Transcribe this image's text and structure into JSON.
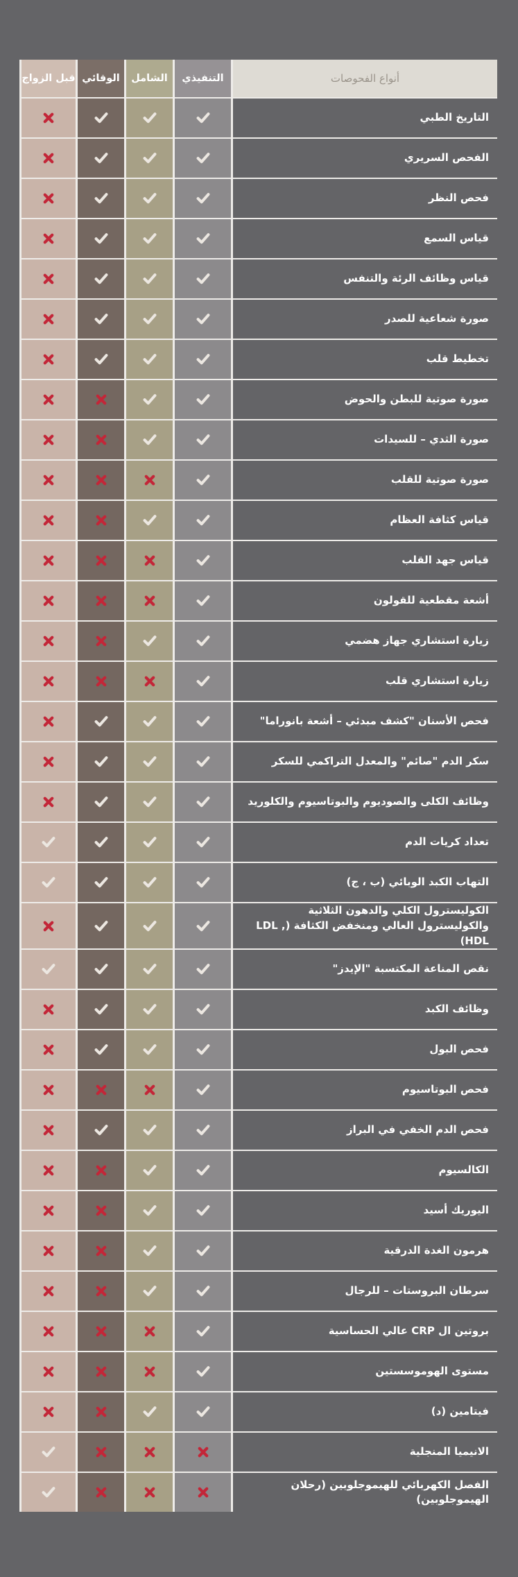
{
  "page": {
    "background_color": "#646467",
    "separator_color": "#eeece9"
  },
  "colors": {
    "check_mark": "#ece7e1",
    "cross_mark": "#c32638",
    "name_header_bg": "#dedbd4",
    "name_header_text": "#9a948b",
    "row_label_text": "#ffffff"
  },
  "table": {
    "name_header": "أنواع الفحوصات",
    "columns": [
      {
        "key": "executive",
        "label": "التنفيذي",
        "header_bg": "#969295",
        "body_bg": "#8c8a8c"
      },
      {
        "key": "comprehensive",
        "label": "الشامل",
        "header_bg": "#aeaa8f",
        "body_bg": "#a7a086"
      },
      {
        "key": "preventive",
        "label": "الوقائي",
        "header_bg": "#7b6e67",
        "body_bg": "#746760"
      },
      {
        "key": "premarital",
        "label": "قبل الزواج",
        "header_bg": "#cfbdb2",
        "body_bg": "#c9b4a9"
      }
    ],
    "rows": [
      {
        "label": "التاريخ الطبي",
        "executive": "check",
        "comprehensive": "check",
        "preventive": "check",
        "premarital": "cross"
      },
      {
        "label": "الفحص السريري",
        "executive": "check",
        "comprehensive": "check",
        "preventive": "check",
        "premarital": "cross"
      },
      {
        "label": "فحص النظر",
        "executive": "check",
        "comprehensive": "check",
        "preventive": "check",
        "premarital": "cross"
      },
      {
        "label": "قياس السمع",
        "executive": "check",
        "comprehensive": "check",
        "preventive": "check",
        "premarital": "cross"
      },
      {
        "label": "قياس وظائف الرئة والتنفس",
        "executive": "check",
        "comprehensive": "check",
        "preventive": "check",
        "premarital": "cross"
      },
      {
        "label": "صورة شعاعية للصدر",
        "executive": "check",
        "comprehensive": "check",
        "preventive": "check",
        "premarital": "cross"
      },
      {
        "label": "تخطيط قلب",
        "executive": "check",
        "comprehensive": "check",
        "preventive": "check",
        "premarital": "cross"
      },
      {
        "label": "صورة صوتية للبطن والحوض",
        "executive": "check",
        "comprehensive": "check",
        "preventive": "cross",
        "premarital": "cross"
      },
      {
        "label": "صورة الثدي – للسيدات",
        "executive": "check",
        "comprehensive": "check",
        "preventive": "cross",
        "premarital": "cross"
      },
      {
        "label": "صورة صوتية للقلب",
        "executive": "check",
        "comprehensive": "cross",
        "preventive": "cross",
        "premarital": "cross"
      },
      {
        "label": "قياس كثافة العظام",
        "executive": "check",
        "comprehensive": "check",
        "preventive": "cross",
        "premarital": "cross"
      },
      {
        "label": "قياس جهد القلب",
        "executive": "check",
        "comprehensive": "cross",
        "preventive": "cross",
        "premarital": "cross"
      },
      {
        "label": "أشعة مقطعية للقولون",
        "executive": "check",
        "comprehensive": "cross",
        "preventive": "cross",
        "premarital": "cross"
      },
      {
        "label": "زيارة استشاري جهاز هضمي",
        "executive": "check",
        "comprehensive": "check",
        "preventive": "cross",
        "premarital": "cross"
      },
      {
        "label": "زيارة استشاري قلب",
        "executive": "check",
        "comprehensive": "cross",
        "preventive": "cross",
        "premarital": "cross"
      },
      {
        "label": "فحص الأسنان \"كشف مبدئي – أشعة بانوراما\"",
        "executive": "check",
        "comprehensive": "check",
        "preventive": "check",
        "premarital": "cross"
      },
      {
        "label": "سكر الدم \"صائم\" والمعدل التراكمي للسكر",
        "executive": "check",
        "comprehensive": "check",
        "preventive": "check",
        "premarital": "cross"
      },
      {
        "label": "وظائف الكلى والصوديوم والبوتاسيوم والكلوريد",
        "executive": "check",
        "comprehensive": "check",
        "preventive": "check",
        "premarital": "cross"
      },
      {
        "label": "تعداد كريات الدم",
        "executive": "check",
        "comprehensive": "check",
        "preventive": "check",
        "premarital": "check"
      },
      {
        "label": "التهاب الكبد الوبائي (ب ، ج)",
        "executive": "check",
        "comprehensive": "check",
        "preventive": "check",
        "premarital": "check"
      },
      {
        "label": "الكوليسترول الكلي والدهون الثلاثية والكوليسترول العالي ومنخفض الكثافة (LDL , HDL)",
        "executive": "check",
        "comprehensive": "check",
        "preventive": "check",
        "premarital": "cross"
      },
      {
        "label": "نقص المناعة المكتسبة \"الإيدز\"",
        "executive": "check",
        "comprehensive": "check",
        "preventive": "check",
        "premarital": "check"
      },
      {
        "label": "وظائف الكبد",
        "executive": "check",
        "comprehensive": "check",
        "preventive": "check",
        "premarital": "cross"
      },
      {
        "label": "فحص البول",
        "executive": "check",
        "comprehensive": "check",
        "preventive": "check",
        "premarital": "cross"
      },
      {
        "label": "فحص البوتاسيوم",
        "executive": "check",
        "comprehensive": "cross",
        "preventive": "cross",
        "premarital": "cross"
      },
      {
        "label": "فحص الدم الخفي في البراز",
        "executive": "check",
        "comprehensive": "check",
        "preventive": "check",
        "premarital": "cross"
      },
      {
        "label": "الكالسيوم",
        "executive": "check",
        "comprehensive": "check",
        "preventive": "cross",
        "premarital": "cross"
      },
      {
        "label": "اليوريك أسيد",
        "executive": "check",
        "comprehensive": "check",
        "preventive": "cross",
        "premarital": "cross"
      },
      {
        "label": "هرمون الغدة الدرقية",
        "executive": "check",
        "comprehensive": "check",
        "preventive": "cross",
        "premarital": "cross"
      },
      {
        "label": "سرطان البروستات – للرجال",
        "executive": "check",
        "comprehensive": "check",
        "preventive": "cross",
        "premarital": "cross"
      },
      {
        "label": "بروتين ال CRP عالي الحساسية",
        "executive": "check",
        "comprehensive": "cross",
        "preventive": "cross",
        "premarital": "cross"
      },
      {
        "label": "مستوى الهوموسستين",
        "executive": "check",
        "comprehensive": "cross",
        "preventive": "cross",
        "premarital": "cross"
      },
      {
        "label": "فيتامين (د)",
        "executive": "check",
        "comprehensive": "check",
        "preventive": "cross",
        "premarital": "cross"
      },
      {
        "label": "الانيميا المنجلية",
        "executive": "cross",
        "comprehensive": "cross",
        "preventive": "cross",
        "premarital": "check"
      },
      {
        "label": "الفصل الكهربائي للهيموجلوبين (رحلان الهيموجلوبين)",
        "executive": "cross",
        "comprehensive": "cross",
        "preventive": "cross",
        "premarital": "check"
      }
    ]
  }
}
